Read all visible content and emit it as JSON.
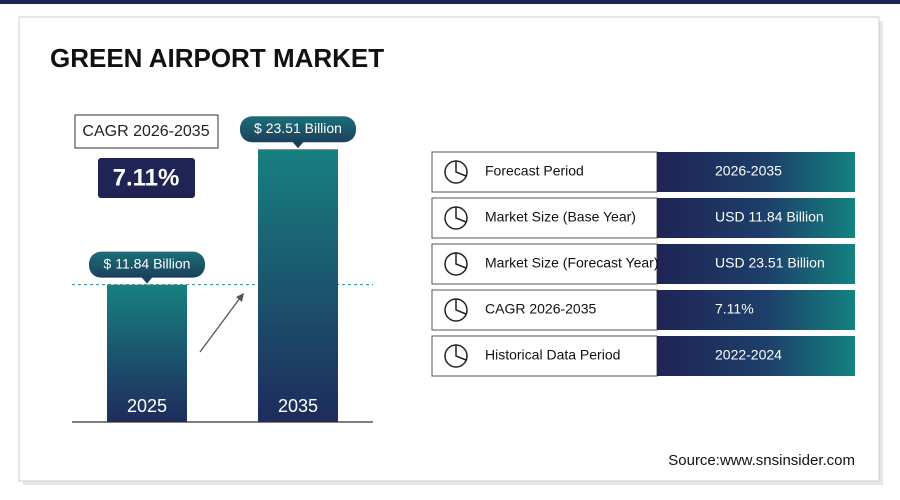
{
  "chart_data": {
    "type": "bar",
    "title": "GREEN AIRPORT MARKET",
    "categories": [
      "2025",
      "2035"
    ],
    "values": [
      11.84,
      23.51
    ],
    "value_labels": [
      "$ 11.84 Billion",
      "$ 23.51 Billion"
    ],
    "color": "#17807f"
  },
  "cagr": {
    "label": "CAGR 2026-2035",
    "value": "7.11%"
  },
  "table": {
    "rows": [
      [
        "Forecast Period",
        "2026-2035"
      ],
      [
        "Market Size (Base Year)",
        "USD 11.84 Billion"
      ],
      [
        "Market Size (Forecast Year)",
        "USD 23.51 Billion"
      ],
      [
        "CAGR 2026-2035",
        "7.11%"
      ],
      [
        "Historical Data Period",
        "2022-2024"
      ]
    ]
  },
  "source": "Source:www.snsinsider.com"
}
